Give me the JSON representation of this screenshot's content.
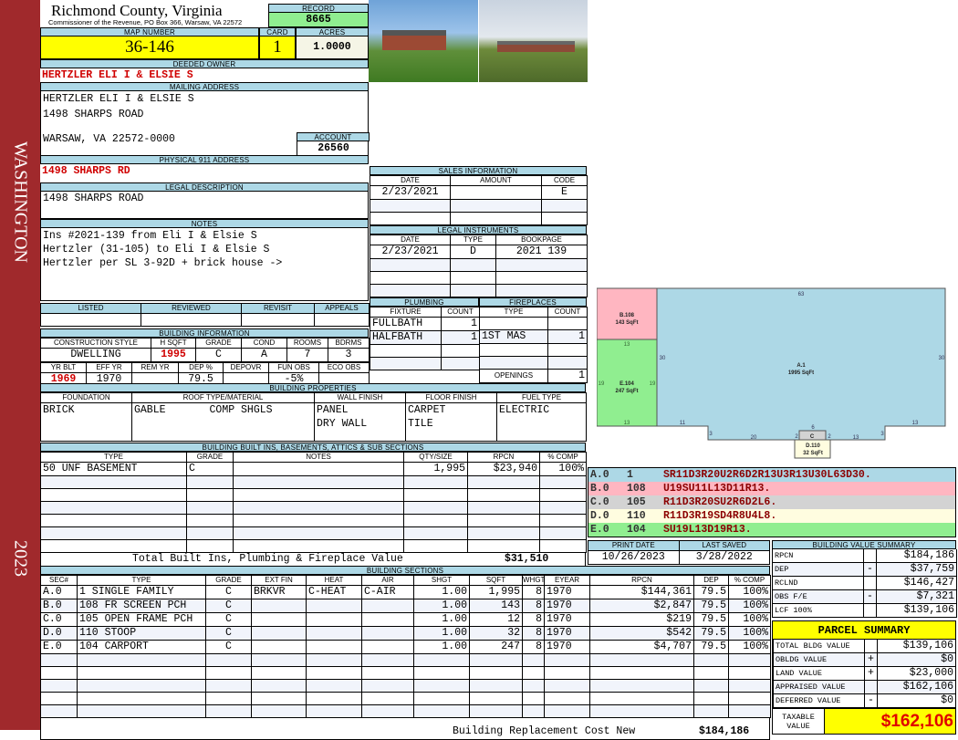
{
  "sidebar": {
    "district": "WASHINGTON",
    "year": "2023"
  },
  "header": {
    "county": "Richmond County, Virginia",
    "subtitle": "Commissioner of the Revenue, PO Box 366, Warsaw, VA 22572",
    "record_label": "RECORD",
    "record": "8665"
  },
  "parcel": {
    "map_label": "MAP NUMBER",
    "map": "36-146",
    "card_label": "CARD",
    "card": "1",
    "acres_label": "ACRES",
    "acres": "1.0000"
  },
  "owner": {
    "label": "DEEDED OWNER",
    "name": "HERTZLER ELI I & ELSIE S"
  },
  "mailing": {
    "label": "MAILING ADDRESS",
    "line1": "HERTZLER ELI I & ELSIE S",
    "line2": "1498 SHARPS ROAD",
    "line3": "WARSAW, VA 22572-0000",
    "account_label": "ACCOUNT",
    "account": "26560"
  },
  "physical": {
    "label": "PHYSICAL 911 ADDRESS",
    "value": "1498 SHARPS RD"
  },
  "legal": {
    "label": "LEGAL DESCRIPTION",
    "value": "1498 SHARPS ROAD"
  },
  "notes": {
    "label": "NOTES",
    "lines": [
      "Ins #2021-139 from Eli I & Elsie S",
      "Hertzler (31-105) to Eli I & Elsie S",
      "Hertzler per SL 3-92D + brick house ->"
    ]
  },
  "review": {
    "headers": [
      "LISTED",
      "REVIEWED",
      "REVISIT",
      "APPEALS"
    ],
    "values": [
      "",
      "",
      "",
      ""
    ]
  },
  "building_info": {
    "label": "BUILDING INFORMATION",
    "h1": [
      "CONSTRUCTION STYLE",
      "H SQFT",
      "GRADE",
      "COND",
      "ROOMS",
      "BDRMS"
    ],
    "v1": [
      "DWELLING",
      "1995",
      "C",
      "A",
      "7",
      "3"
    ],
    "h2": [
      "YR BLT",
      "EFF YR",
      "REM YR",
      "DEP %",
      "DEPOVR",
      "FUN OBS",
      "ECO OBS"
    ],
    "v2": [
      "1969",
      "1970",
      "",
      "79.5",
      "",
      "-5%",
      ""
    ]
  },
  "building_props": {
    "label": "BUILDING PROPERTIES",
    "headers": [
      "FOUNDATION",
      "ROOF TYPE/MATERIAL",
      "WALL FINISH",
      "FLOOR FINISH",
      "FUEL TYPE"
    ],
    "foundation": "BRICK",
    "roof_type": "GABLE",
    "roof_material": "COMP SHGLS",
    "wall": [
      "PANEL",
      "DRY WALL"
    ],
    "floor": [
      "CARPET",
      "TILE"
    ],
    "fuel": "ELECTRIC"
  },
  "builtins": {
    "label": "BUILDING BUILT INS, BASEMENTS, ATTICS & SUB SECTIONS",
    "headers": [
      "TYPE",
      "GRADE",
      "NOTES",
      "QTY/SIZE",
      "RPCN",
      "% COMP"
    ],
    "rows": [
      [
        "50 UNF BASEMENT",
        "C",
        "",
        "1,995",
        "$23,940",
        "100%"
      ]
    ],
    "total_label": "Total Built Ins, Plumbing & Fireplace Value",
    "total": "$31,510"
  },
  "sections": {
    "label": "BUILDING SECTIONS",
    "headers": [
      "SEC#",
      "TYPE",
      "GRADE",
      "EXT FIN",
      "HEAT",
      "AIR",
      "SHGT",
      "SQFT",
      "WHGT",
      "EYEAR",
      "RPCN",
      "DEP",
      "% COMP"
    ],
    "rows": [
      [
        "A.0",
        "1 SINGLE FAMILY",
        "C",
        "BRKVR",
        "C-HEAT",
        "C-AIR",
        "1.00",
        "1,995",
        "8",
        "1970",
        "$144,361",
        "79.5",
        "100%"
      ],
      [
        "B.0",
        "108 FR SCREEN PCH",
        "C",
        "",
        "",
        "",
        "1.00",
        "143",
        "8",
        "1970",
        "$2,847",
        "79.5",
        "100%"
      ],
      [
        "C.0",
        "105 OPEN FRAME PCH",
        "C",
        "",
        "",
        "",
        "1.00",
        "12",
        "8",
        "1970",
        "$219",
        "79.5",
        "100%"
      ],
      [
        "D.0",
        "110 STOOP",
        "C",
        "",
        "",
        "",
        "1.00",
        "32",
        "8",
        "1970",
        "$542",
        "79.5",
        "100%"
      ],
      [
        "E.0",
        "104 CARPORT",
        "C",
        "",
        "",
        "",
        "1.00",
        "247",
        "8",
        "1970",
        "$4,707",
        "79.5",
        "100%"
      ]
    ],
    "total_label": "Building Replacement Cost New",
    "total": "$184,186"
  },
  "sales": {
    "label": "SALES INFORMATION",
    "headers": [
      "DATE",
      "AMOUNT",
      "CODE"
    ],
    "rows": [
      [
        "2/23/2021",
        "",
        "E"
      ]
    ]
  },
  "instruments": {
    "label": "LEGAL INSTRUMENTS",
    "headers": [
      "DATE",
      "TYPE",
      "BOOKPAGE"
    ],
    "rows": [
      [
        "2/23/2021",
        "D",
        "2021 139"
      ]
    ]
  },
  "plumbing": {
    "label": "PLUMBING",
    "headers": [
      "FIXTURE",
      "COUNT"
    ],
    "rows": [
      [
        "FULLBATH",
        "1"
      ],
      [
        "HALFBATH",
        "1"
      ]
    ]
  },
  "fireplaces": {
    "label": "FIREPLACES",
    "headers": [
      "TYPE",
      "COUNT"
    ],
    "rows": [
      [
        "",
        ""
      ],
      [
        "1ST MAS",
        "1"
      ]
    ],
    "openings_label": "OPENINGS",
    "openings": "1"
  },
  "sketch": {
    "labels": {
      "a": "A.1",
      "a_area": "1995 SqFt",
      "b": "B.108",
      "b_area": "143 SqFt",
      "c": "C",
      "d": "D.110",
      "d_area": "32 SqFt",
      "e": "E.104",
      "e_area": "247 SqFt"
    },
    "dims": [
      "63",
      "30",
      "30",
      "13",
      "13",
      "19",
      "19",
      "11",
      "3",
      "20",
      "2",
      "6",
      "2",
      "13",
      "3",
      "13"
    ],
    "colors": {
      "A": "#add8e6",
      "B": "#ffb6c1",
      "C": "#d3d3d3",
      "D": "#fffde0",
      "E": "#90ee90"
    },
    "codes": [
      [
        "A.0",
        "1",
        "SR11D3R20U2R6D2R13U3R13U30L63D30."
      ],
      [
        "B.0",
        "108",
        "U19SU11L13D11R13."
      ],
      [
        "C.0",
        "105",
        "R11D3R20SU2R6D2L6."
      ],
      [
        "D.0",
        "110",
        "R11D3R19SD4R8U4L8."
      ],
      [
        "E.0",
        "104",
        "SU19L13D19R13."
      ]
    ]
  },
  "dates": {
    "print_label": "PRINT DATE",
    "print": "10/26/2023",
    "saved_label": "LAST SAVED",
    "saved": "3/28/2022"
  },
  "value_summary": {
    "label": "BUILDING VALUE SUMMARY",
    "rows": [
      [
        "RPCN",
        "",
        "$184,186"
      ],
      [
        "DEP",
        "-",
        "$37,759"
      ],
      [
        "RCLND",
        "",
        "$146,427"
      ],
      [
        "OBS F/E",
        "-",
        "$7,321"
      ],
      [
        "LCF  100%",
        "",
        "$139,106"
      ]
    ]
  },
  "parcel_summary": {
    "label": "PARCEL SUMMARY",
    "rows": [
      [
        "TOTAL BLDG VALUE",
        "",
        "$139,106"
      ],
      [
        "OBLDG VALUE",
        "+",
        "$0"
      ],
      [
        "LAND VALUE",
        "+",
        "$23,000"
      ],
      [
        "APPRAISED VALUE",
        "",
        "$162,106"
      ],
      [
        "DEFERRED VALUE",
        "-",
        "$0"
      ]
    ],
    "taxable_label": "TAXABLE VALUE",
    "taxable": "$162,106"
  }
}
